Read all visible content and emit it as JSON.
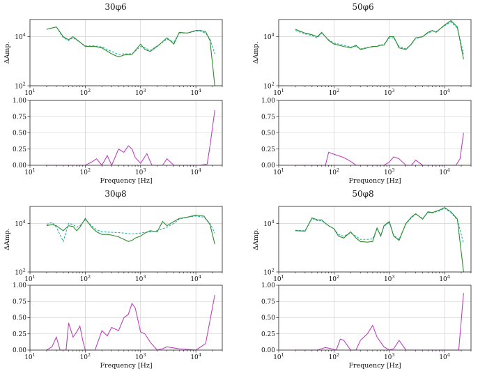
{
  "colors": {
    "measured": "#2e8b2e",
    "model": "#20b2aa",
    "diff": "#c040c0"
  },
  "chart_data": [
    {
      "type": "line",
      "title": "30φ6",
      "amp": {
        "ylabel": "ΔAmp.",
        "yscale": "log",
        "ylim": [
          100,
          50000
        ],
        "xscale": "log",
        "xlim": [
          10,
          30000
        ],
        "grid": true,
        "x": [
          20,
          30,
          40,
          50,
          60,
          80,
          100,
          150,
          200,
          300,
          400,
          500,
          700,
          1000,
          1200,
          1500,
          2000,
          3000,
          4000,
          5000,
          7000,
          10000,
          12000,
          15000,
          18000,
          22000
        ],
        "series": [
          {
            "values": [
              20000,
              25000,
              10000,
              7500,
              10000,
              6000,
              4000,
              4000,
              3500,
              2000,
              1500,
              1800,
              1900,
              5000,
              3000,
              2500,
              4000,
              9000,
              5000,
              15000,
              14000,
              18000,
              18000,
              16000,
              7000,
              100
            ]
          },
          {
            "values": [
              20000,
              25000,
              9000,
              7000,
              9000,
              6000,
              4200,
              4200,
              3800,
              2500,
              1900,
              2000,
              2000,
              4000,
              3500,
              2800,
              4200,
              8000,
              6000,
              14000,
              14000,
              17000,
              17000,
              14000,
              8000,
              2000
            ]
          }
        ]
      },
      "diff": {
        "ylim": [
          0,
          1
        ],
        "yticks": [
          0.0,
          0.25,
          0.5,
          0.75,
          1.0
        ],
        "xlabel": "Frequency [Hz]",
        "x": [
          20,
          60,
          100,
          130,
          160,
          200,
          250,
          300,
          400,
          500,
          600,
          700,
          800,
          1000,
          1300,
          1600,
          2000,
          2500,
          3000,
          4000,
          5000,
          8000,
          12000,
          16000,
          18000,
          22000
        ],
        "values": [
          0,
          0,
          0,
          0.05,
          0.1,
          0,
          0.15,
          0,
          0.25,
          0.2,
          0.3,
          0.25,
          0.12,
          0.03,
          0.18,
          0,
          0,
          0,
          0.1,
          0,
          0,
          0,
          0,
          0.02,
          0.3,
          0.85
        ]
      }
    },
    {
      "type": "line",
      "title": "50φ6",
      "amp": {
        "ylabel": "ΔAmp.",
        "yscale": "log",
        "ylim": [
          100,
          50000
        ],
        "xscale": "log",
        "xlim": [
          10,
          30000
        ],
        "grid": true,
        "x": [
          20,
          30,
          40,
          50,
          60,
          80,
          100,
          150,
          200,
          250,
          300,
          400,
          500,
          600,
          700,
          800,
          1000,
          1200,
          1500,
          2000,
          2500,
          3000,
          4000,
          5000,
          6000,
          7000,
          10000,
          13000,
          17000,
          22000
        ],
        "series": [
          {
            "values": [
              20000,
              14000,
              12000,
              10000,
              15000,
              7000,
              5000,
              4000,
              3500,
              4500,
              3000,
              3500,
              4000,
              4000,
              4500,
              4500,
              10000,
              10000,
              3500,
              3000,
              5000,
              9000,
              10000,
              15000,
              18000,
              15000,
              30000,
              45000,
              25000,
              1200
            ]
          },
          {
            "values": [
              18000,
              13000,
              11000,
              9000,
              14000,
              7500,
              5500,
              4500,
              3800,
              4000,
              3200,
              3600,
              3800,
              4200,
              4600,
              4800,
              9000,
              9000,
              4000,
              3200,
              4800,
              8500,
              10000,
              14000,
              17000,
              16000,
              28000,
              40000,
              22000,
              2000
            ]
          }
        ]
      },
      "diff": {
        "ylim": [
          0,
          1
        ],
        "yticks": [
          0.0,
          0.25,
          0.5,
          0.75,
          1.0
        ],
        "xlabel": "Frequency [Hz]",
        "x": [
          20,
          50,
          70,
          80,
          100,
          150,
          200,
          250,
          300,
          500,
          800,
          1000,
          1200,
          1500,
          2000,
          2500,
          3000,
          4000,
          6000,
          10000,
          16000,
          19000,
          22000
        ],
        "values": [
          0,
          0,
          0,
          0.2,
          0.17,
          0.12,
          0.06,
          0,
          0,
          0,
          0,
          0.05,
          0.13,
          0.1,
          0,
          0,
          0.08,
          0,
          0,
          0,
          0,
          0.1,
          0.5
        ]
      }
    },
    {
      "type": "line",
      "title": "30φ8",
      "amp": {
        "ylabel": "ΔAmp.",
        "yscale": "log",
        "ylim": [
          100,
          50000
        ],
        "xscale": "log",
        "xlim": [
          10,
          30000
        ],
        "grid": true,
        "x": [
          20,
          25,
          30,
          40,
          50,
          60,
          70,
          80,
          100,
          130,
          160,
          200,
          250,
          300,
          400,
          500,
          600,
          700,
          800,
          1000,
          1200,
          1500,
          2000,
          2500,
          3000,
          4000,
          5000,
          7000,
          10000,
          14000,
          18000,
          22000
        ],
        "series": [
          {
            "values": [
              8000,
              9000,
              8000,
              5000,
              8000,
              7500,
              5000,
              7000,
              16000,
              7000,
              4500,
              3500,
              3500,
              3300,
              2800,
              2200,
              1800,
              2000,
              2500,
              3000,
              4000,
              5000,
              4500,
              12000,
              8000,
              12000,
              16000,
              18000,
              22000,
              20000,
              9000,
              1400
            ]
          },
          {
            "values": [
              9000,
              11000,
              7000,
              1800,
              10000,
              9000,
              7000,
              8000,
              14000,
              8000,
              5500,
              4500,
              4400,
              4300,
              4200,
              4000,
              3800,
              3700,
              3800,
              4000,
              4300,
              4500,
              5000,
              6000,
              7000,
              10000,
              15000,
              18000,
              20000,
              18000,
              10000,
              4000
            ]
          }
        ]
      },
      "diff": {
        "ylim": [
          0,
          1
        ],
        "yticks": [
          0.0,
          0.25,
          0.5,
          0.75,
          1.0
        ],
        "xlabel": "Frequency [Hz]",
        "x": [
          20,
          25,
          30,
          35,
          40,
          45,
          50,
          60,
          70,
          80,
          90,
          100,
          120,
          150,
          200,
          250,
          300,
          400,
          500,
          600,
          700,
          800,
          1000,
          1200,
          1500,
          2000,
          2500,
          3000,
          5000,
          10000,
          15000,
          22000
        ],
        "values": [
          0,
          0.05,
          0.2,
          0,
          0,
          0,
          0.42,
          0.2,
          0.28,
          0.37,
          0.15,
          0,
          0,
          0,
          0.3,
          0.22,
          0.35,
          0.3,
          0.5,
          0.55,
          0.72,
          0.65,
          0.28,
          0.25,
          0.12,
          0,
          0.02,
          0.05,
          0.02,
          0,
          0.1,
          0.85
        ]
      }
    },
    {
      "type": "line",
      "title": "50φ8",
      "amp": {
        "ylabel": "ΔAmp.",
        "yscale": "log",
        "ylim": [
          100,
          50000
        ],
        "xscale": "log",
        "xlim": [
          10,
          30000
        ],
        "grid": true,
        "x": [
          20,
          30,
          40,
          50,
          60,
          70,
          80,
          100,
          120,
          150,
          200,
          250,
          300,
          400,
          500,
          600,
          700,
          800,
          1000,
          1200,
          1500,
          2000,
          2500,
          3000,
          4000,
          5000,
          6000,
          8000,
          10000,
          13000,
          17000,
          22000
        ],
        "series": [
          {
            "values": [
              5000,
              4800,
              17000,
              14000,
              14000,
              10000,
              8000,
              6000,
              3000,
              2500,
              4500,
              2500,
              1800,
              1700,
              1800,
              6500,
              3000,
              8000,
              12000,
              3000,
              2000,
              10000,
              18000,
              25000,
              15000,
              30000,
              28000,
              35000,
              45000,
              30000,
              15000,
              100
            ]
          },
          {
            "values": [
              5200,
              5000,
              16000,
              13000,
              13000,
              10000,
              8000,
              6000,
              3500,
              3000,
              4000,
              3000,
              2200,
              2200,
              2300,
              6000,
              3200,
              7500,
              11000,
              3200,
              2200,
              9500,
              17000,
              24000,
              16000,
              28000,
              27000,
              33000,
              42000,
              28000,
              14000,
              1500
            ]
          }
        ]
      },
      "diff": {
        "ylim": [
          0,
          1
        ],
        "yticks": [
          0.0,
          0.25,
          0.5,
          0.75,
          1.0
        ],
        "xlabel": "Frequency [Hz]",
        "x": [
          20,
          50,
          70,
          90,
          110,
          130,
          150,
          200,
          250,
          300,
          400,
          500,
          600,
          800,
          1000,
          1200,
          1500,
          2000,
          3000,
          5000,
          10000,
          18000,
          22000
        ],
        "values": [
          0,
          0,
          0.04,
          0.02,
          0,
          0.17,
          0.15,
          0,
          0,
          0.15,
          0.25,
          0.38,
          0.2,
          0.05,
          0,
          0.02,
          0.15,
          0,
          0,
          0,
          0,
          0,
          0.88
        ]
      }
    }
  ]
}
